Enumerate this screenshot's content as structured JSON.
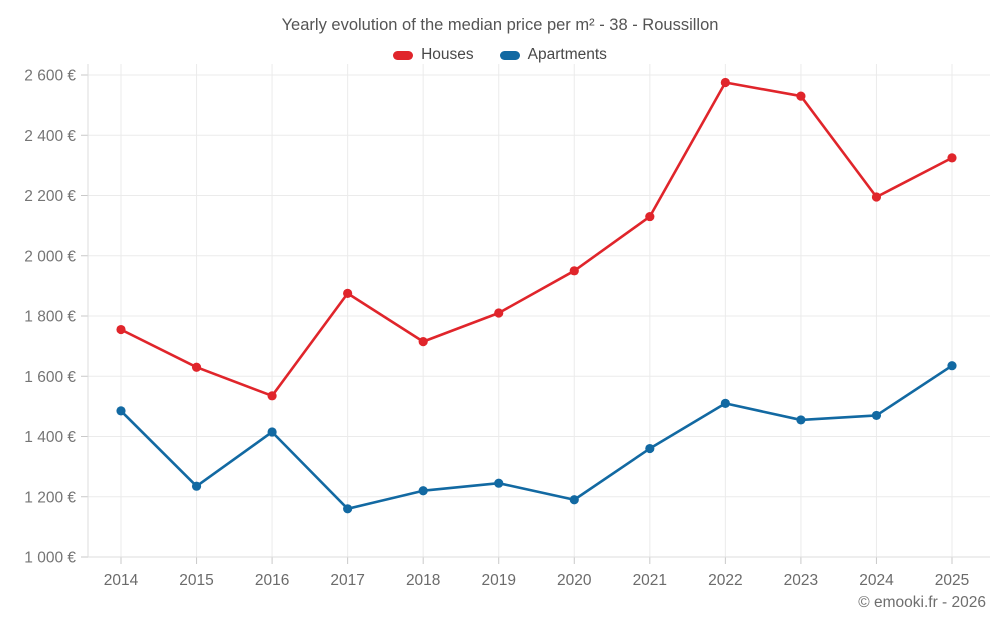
{
  "header": {
    "title": "Yearly evolution of the median price per m² - 38 - Roussillon"
  },
  "legend": {
    "items": [
      {
        "label": "Houses",
        "color": "#e0252b"
      },
      {
        "label": "Apartments",
        "color": "#1269a2"
      }
    ]
  },
  "footer": {
    "copyright": "© emooki.fr - 2026"
  },
  "chart_data": {
    "type": "line",
    "title": "Yearly evolution of the median price per m² - 38 - Roussillon",
    "xlabel": "",
    "ylabel": "",
    "categories": [
      "2014",
      "2015",
      "2016",
      "2017",
      "2018",
      "2019",
      "2020",
      "2021",
      "2022",
      "2023",
      "2024",
      "2025"
    ],
    "series": [
      {
        "name": "Houses",
        "color": "#e0252b",
        "values": [
          1755,
          1630,
          1535,
          1875,
          1715,
          1810,
          1950,
          2130,
          2575,
          2530,
          2195,
          2325
        ]
      },
      {
        "name": "Apartments",
        "color": "#1269a2",
        "values": [
          1485,
          1235,
          1415,
          1160,
          1220,
          1245,
          1190,
          1360,
          1510,
          1455,
          1470,
          1635
        ]
      }
    ],
    "ylim": [
      1000,
      2600
    ],
    "y_tick_step": 200,
    "y_ticks": [
      "1 000 €",
      "1 200 €",
      "1 400 €",
      "1 600 €",
      "1 800 €",
      "2 000 €",
      "2 200 €",
      "2 400 €",
      "2 600 €"
    ],
    "currency": "€",
    "grid": true,
    "legend_position": "top",
    "grid_color": "#ebebeb",
    "axis_color": "#dedede",
    "tick_color": "#c9c9c9",
    "tick_label_color": "#757575"
  }
}
